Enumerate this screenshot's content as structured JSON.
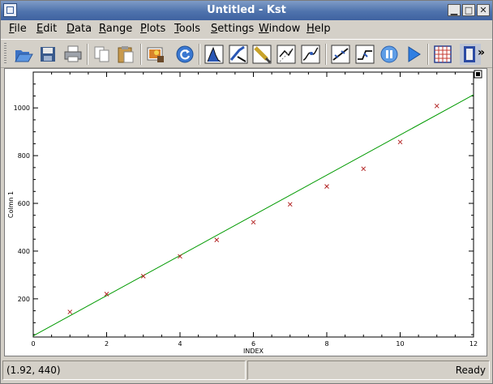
{
  "window": {
    "title": "Untitled - Kst",
    "minimize_glyph": "▁",
    "restore_glyph": "□",
    "close_glyph": "✕"
  },
  "menu": [
    "File",
    "Edit",
    "Data",
    "Range",
    "Plots",
    "Tools",
    "Settings",
    "Window",
    "Help"
  ],
  "toolbar": {
    "icons": [
      "open-icon",
      "save-icon",
      "print-icon",
      "copy-icon",
      "paste-icon",
      "export-image-icon",
      "reload-icon",
      "histogram-icon",
      "zoom-icon",
      "edit-icon",
      "data-wizard-icon",
      "curve-icon",
      "fit-icon",
      "filter-icon",
      "pause-icon",
      "play-icon",
      "matrix-icon",
      "layout-icon"
    ],
    "more_glyph": "»"
  },
  "chart_data": {
    "type": "scatter",
    "xlabel": "INDEX",
    "ylabel": "Colmn 1",
    "xlim": [
      0,
      12
    ],
    "ylim": [
      40,
      1150
    ],
    "x_ticks": [
      0,
      2,
      4,
      6,
      8,
      10,
      12
    ],
    "y_ticks": [
      200,
      400,
      600,
      800,
      1000
    ],
    "series": [
      {
        "marker": "x",
        "color": "#b22222",
        "x": [
          1,
          2,
          3,
          4,
          5,
          6,
          7,
          8,
          9,
          10,
          11
        ],
        "y": [
          145,
          220,
          295,
          378,
          447,
          521,
          596,
          671,
          745,
          857,
          1008
        ]
      }
    ],
    "fit_line": {
      "color": "#009a00",
      "x": [
        0,
        12
      ],
      "y": [
        45,
        1055
      ]
    }
  },
  "status": {
    "coordinates": "(1.92, 440)",
    "state": "Ready"
  }
}
